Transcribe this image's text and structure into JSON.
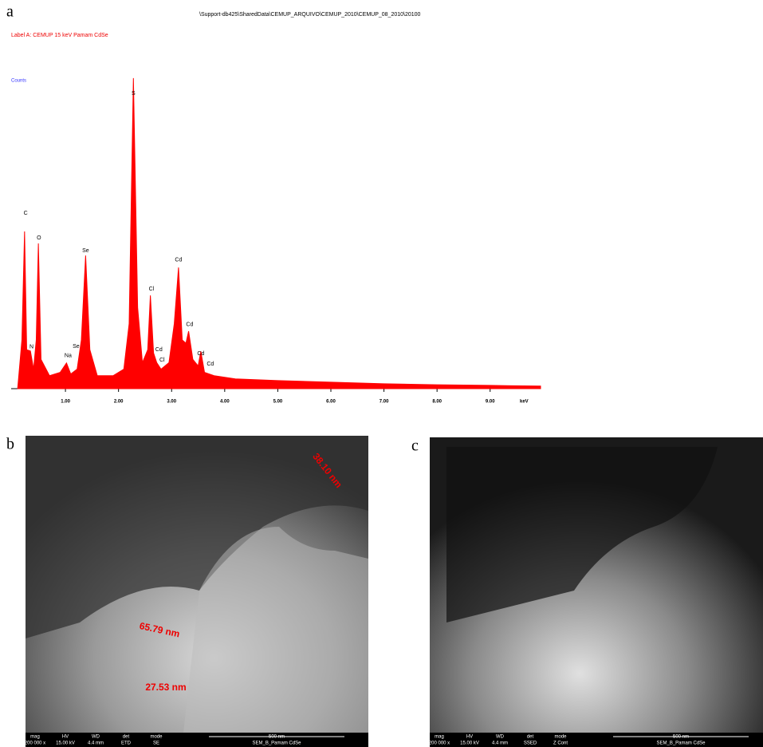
{
  "panel_labels": [
    "a",
    "b",
    "c"
  ],
  "chart_data": {
    "type": "line",
    "file_path": "\\Support-db425\\SharedData\\CEMUP_ARQUIVO\\CEMUP_2010\\CEMUP_08_2010\\20100",
    "title": "Label A: CEMUP  15 keV  Pamam CdSe",
    "y_label": "Counts",
    "x_label": "keV",
    "color": "#ff0000",
    "x": [
      0.1,
      0.18,
      0.23,
      0.27,
      0.34,
      0.4,
      0.45,
      0.49,
      0.54,
      0.7,
      0.9,
      1.02,
      1.1,
      1.22,
      1.3,
      1.38,
      1.46,
      1.6,
      1.9,
      2.1,
      2.2,
      2.28,
      2.36,
      2.45,
      2.55,
      2.6,
      2.66,
      2.72,
      2.8,
      2.95,
      3.05,
      3.13,
      3.2,
      3.27,
      3.32,
      3.4,
      3.5,
      3.55,
      3.62,
      3.8,
      4.2,
      5,
      6,
      7,
      8,
      9,
      9.95
    ],
    "values": [
      0,
      150,
      484,
      120,
      116,
      60,
      150,
      447,
      90,
      40,
      50,
      79,
      45,
      60,
      150,
      410,
      120,
      40,
      40,
      60,
      200,
      956,
      250,
      80,
      120,
      287,
      110,
      80,
      60,
      80,
      200,
      373,
      150,
      140,
      177,
      90,
      70,
      115,
      50,
      40,
      30,
      25,
      20,
      15,
      12,
      10,
      8
    ],
    "xlim": [
      0,
      9.95
    ],
    "ylim": [
      0,
      1000
    ],
    "xticks": [
      {
        "value": 1,
        "label": "1.00"
      },
      {
        "value": 2,
        "label": "2.00"
      },
      {
        "value": 3,
        "label": "3.00"
      },
      {
        "value": 4,
        "label": "4.00"
      },
      {
        "value": 5,
        "label": "5.00"
      },
      {
        "value": 6,
        "label": "6.00"
      },
      {
        "value": 7,
        "label": "7.00"
      },
      {
        "value": 8,
        "label": "8.00"
      },
      {
        "value": 9,
        "label": "9.00"
      }
    ],
    "annotations": [
      {
        "text": "C",
        "x": 0.25,
        "y": 540
      },
      {
        "text": "N",
        "x": 0.36,
        "y": 128
      },
      {
        "text": "O",
        "x": 0.5,
        "y": 464
      },
      {
        "text": "Na",
        "x": 1.05,
        "y": 101
      },
      {
        "text": "Se",
        "x": 1.2,
        "y": 130
      },
      {
        "text": "Se",
        "x": 1.38,
        "y": 425
      },
      {
        "text": "S",
        "x": 2.28,
        "y": 909
      },
      {
        "text": "Cl",
        "x": 2.62,
        "y": 307
      },
      {
        "text": "Cd",
        "x": 2.76,
        "y": 120
      },
      {
        "text": "Cl",
        "x": 2.82,
        "y": 88
      },
      {
        "text": "Cd",
        "x": 3.13,
        "y": 396
      },
      {
        "text": "Cd",
        "x": 3.34,
        "y": 197
      },
      {
        "text": "Cd",
        "x": 3.55,
        "y": 108
      },
      {
        "text": "Cd",
        "x": 3.73,
        "y": 76
      }
    ]
  },
  "images": [
    {
      "annotations": [
        "38.10 nm",
        "65.79 nm",
        "27.53 nm"
      ],
      "info_headers": [
        "mag",
        "HV",
        "WD",
        "det",
        "mode"
      ],
      "info_values": [
        "200 000 x",
        "15.00 kV",
        "4.4 mm",
        "ETD",
        "SE"
      ],
      "scale_bar": "500 nm",
      "sample": "SEM_B_Pamam CdSe"
    },
    {
      "info_headers": [
        "mag",
        "HV",
        "WD",
        "det",
        "mode"
      ],
      "info_values": [
        "200 000 x",
        "15.00 kV",
        "4.4 mm",
        "SSED",
        "Z Cont"
      ],
      "scale_bar": "500 nm",
      "sample": "SEM_B_Pamam CdSe"
    }
  ]
}
